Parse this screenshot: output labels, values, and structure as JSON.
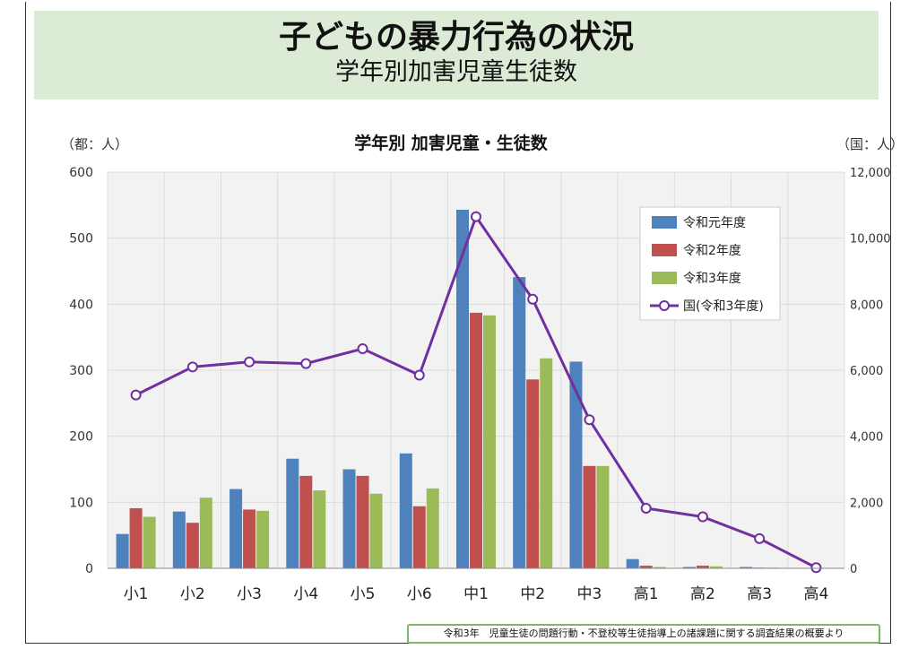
{
  "header": {
    "title": "子どもの暴力行為の状況",
    "subtitle": "学年別加害児童生徒数"
  },
  "footer": {
    "source": "令和3年　児童生徒の問題行動・不登校等生徒指導上の諸課題に関する調査結果の概要より"
  },
  "chart_data": {
    "type": "bar",
    "title": "学年別  加害児童・生徒数",
    "ylabel_left": "（都：人）",
    "ylabel_right": "（国：人）",
    "categories": [
      "小1",
      "小2",
      "小3",
      "小4",
      "小5",
      "小6",
      "中1",
      "中2",
      "中3",
      "高1",
      "高2",
      "高3",
      "高4"
    ],
    "ylim_left": [
      0,
      600
    ],
    "yticks_left": [
      "0",
      "100",
      "200",
      "300",
      "400",
      "500",
      "600"
    ],
    "ylim_right": [
      0,
      12000
    ],
    "yticks_right": [
      "0",
      "2,000",
      "4,000",
      "6,000",
      "8,000",
      "10,000",
      "12,000"
    ],
    "grid": true,
    "legend_position": "top-right",
    "series": [
      {
        "name": "令和元年度",
        "type": "bar",
        "axis": "left",
        "color": "#4f81bd",
        "values": [
          52,
          86,
          120,
          166,
          150,
          174,
          543,
          441,
          313,
          14,
          2,
          2,
          0
        ]
      },
      {
        "name": "令和2年度",
        "type": "bar",
        "axis": "left",
        "color": "#c0504d",
        "values": [
          91,
          69,
          89,
          140,
          140,
          94,
          387,
          286,
          155,
          4,
          4,
          1,
          0
        ]
      },
      {
        "name": "令和3年度",
        "type": "bar",
        "axis": "left",
        "color": "#9bbb59",
        "values": [
          78,
          107,
          87,
          118,
          113,
          121,
          383,
          318,
          155,
          2,
          3,
          1,
          0
        ]
      },
      {
        "name": "国(令和3年度)",
        "type": "line",
        "axis": "right",
        "color": "#7030a0",
        "values": [
          5250,
          6100,
          6250,
          6200,
          6650,
          5850,
          10650,
          8150,
          4500,
          1820,
          1560,
          900,
          20
        ]
      }
    ]
  }
}
